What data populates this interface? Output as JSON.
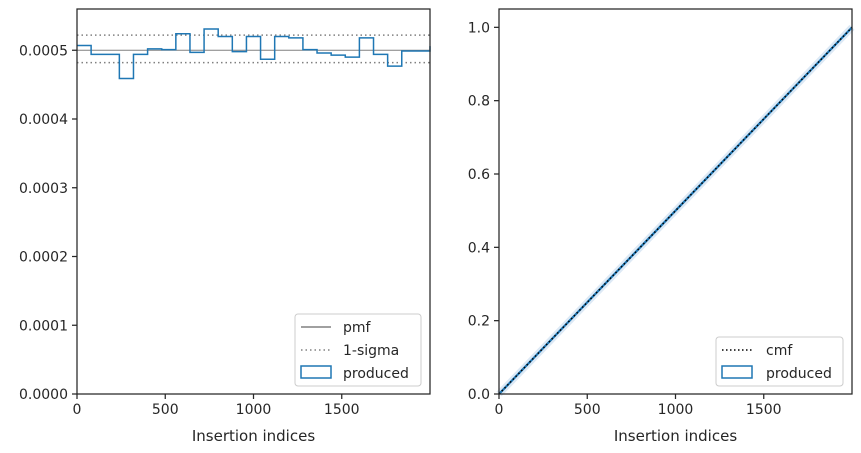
{
  "colors": {
    "produced": "#1f77b4",
    "pmf": "#808080",
    "sigma": "#808080",
    "cmf": "#000000",
    "axes": "#262626"
  },
  "chart_data": [
    {
      "type": "step",
      "xlabel": "Insertion indices",
      "ylabel": "",
      "xlim": [
        0,
        2000
      ],
      "ylim": [
        0,
        0.00056
      ],
      "xticks": [
        0,
        500,
        1000,
        1500
      ],
      "xtick_labels": [
        "0",
        "500",
        "1000",
        "1500"
      ],
      "yticks": [
        0,
        0.0001,
        0.0002,
        0.0003,
        0.0004,
        0.0005
      ],
      "ytick_labels": [
        "0.0000",
        "0.0001",
        "0.0002",
        "0.0003",
        "0.0004",
        "0.0005"
      ],
      "pmf": 0.0005,
      "sigma_band": [
        0.000482,
        0.000522
      ],
      "bin_edges": [
        0,
        80,
        160,
        240,
        320,
        400,
        480,
        560,
        640,
        720,
        800,
        880,
        960,
        1040,
        1120,
        1200,
        1280,
        1360,
        1440,
        1520,
        1600,
        1680,
        1760,
        1840,
        1920,
        2000
      ],
      "produced": [
        0.000507,
        0.000494,
        0.000494,
        0.000459,
        0.000494,
        0.000502,
        0.000501,
        0.000524,
        0.000497,
        0.000531,
        0.00052,
        0.000498,
        0.00052,
        0.000487,
        0.00052,
        0.000518,
        0.000501,
        0.000496,
        0.000493,
        0.00049,
        0.000518,
        0.000494,
        0.000477,
        0.000499,
        0.000499,
        0.000506
      ],
      "legend": [
        "pmf",
        "1-sigma",
        "produced"
      ],
      "legend_position": "lower right",
      "grid": false
    },
    {
      "type": "line",
      "xlabel": "Insertion indices",
      "ylabel": "",
      "xlim": [
        0,
        2000
      ],
      "ylim": [
        0,
        1.05
      ],
      "xticks": [
        0,
        500,
        1000,
        1500
      ],
      "xtick_labels": [
        "0",
        "500",
        "1000",
        "1500"
      ],
      "yticks": [
        0,
        0.2,
        0.4,
        0.6,
        0.8,
        1.0
      ],
      "ytick_labels": [
        "0.0",
        "0.2",
        "0.4",
        "0.6",
        "0.8",
        "1.0"
      ],
      "cmf": {
        "x": [
          0,
          2000
        ],
        "y": [
          0,
          1.0
        ]
      },
      "produced": {
        "x": [
          0,
          2000
        ],
        "y": [
          0,
          1.0
        ]
      },
      "legend": [
        "cmf",
        "produced"
      ],
      "legend_position": "lower right",
      "grid": false
    }
  ]
}
